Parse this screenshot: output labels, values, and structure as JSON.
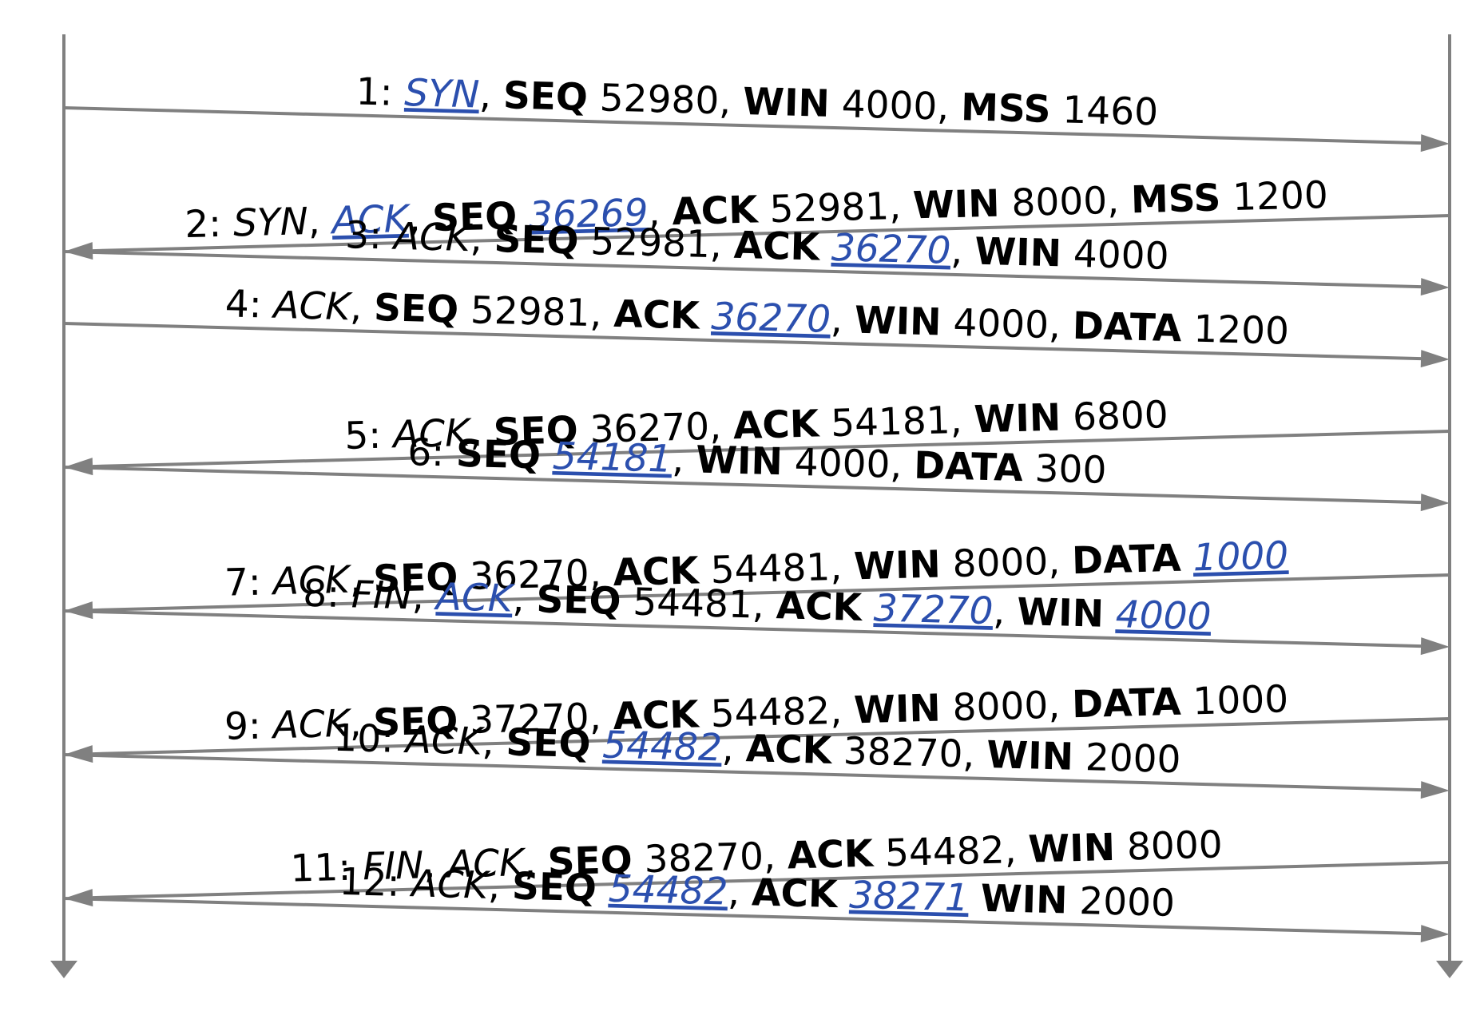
{
  "colors": {
    "line": "#808080",
    "text": "#000000",
    "handwriting": "#2b4fae"
  },
  "messages": [
    {
      "id": 1,
      "dir": "right",
      "segments": [
        {
          "t": "1: ",
          "s": "n"
        },
        {
          "t": "SYN",
          "s": "hw"
        },
        {
          "t": ", ",
          "s": "n"
        },
        {
          "t": "SEQ",
          "s": "b"
        },
        {
          "t": " 52980, ",
          "s": "n"
        },
        {
          "t": "WIN",
          "s": "b"
        },
        {
          "t": " 4000, ",
          "s": "n"
        },
        {
          "t": "MSS",
          "s": "b"
        },
        {
          "t": " 1460",
          "s": "n"
        }
      ]
    },
    {
      "id": 2,
      "dir": "left",
      "segments": [
        {
          "t": "2: ",
          "s": "n"
        },
        {
          "t": "SYN",
          "s": "i"
        },
        {
          "t": ", ",
          "s": "n"
        },
        {
          "t": "ACK",
          "s": "hw"
        },
        {
          "t": ", ",
          "s": "n"
        },
        {
          "t": "SEQ",
          "s": "b"
        },
        {
          "t": " ",
          "s": "n"
        },
        {
          "t": "36269",
          "s": "hw"
        },
        {
          "t": ", ",
          "s": "n"
        },
        {
          "t": "ACK",
          "s": "b"
        },
        {
          "t": " 52981, ",
          "s": "n"
        },
        {
          "t": "WIN",
          "s": "b"
        },
        {
          "t": " 8000, ",
          "s": "n"
        },
        {
          "t": "MSS",
          "s": "b"
        },
        {
          "t": " 1200",
          "s": "n"
        }
      ]
    },
    {
      "id": 3,
      "dir": "right",
      "segments": [
        {
          "t": "3: ",
          "s": "n"
        },
        {
          "t": "ACK",
          "s": "i"
        },
        {
          "t": ", ",
          "s": "n"
        },
        {
          "t": "SEQ",
          "s": "b"
        },
        {
          "t": " 52981, ",
          "s": "n"
        },
        {
          "t": "ACK",
          "s": "b"
        },
        {
          "t": " ",
          "s": "n"
        },
        {
          "t": "36270",
          "s": "hw"
        },
        {
          "t": ", ",
          "s": "n"
        },
        {
          "t": "WIN",
          "s": "b"
        },
        {
          "t": " 4000",
          "s": "n"
        }
      ]
    },
    {
      "id": 4,
      "dir": "right",
      "segments": [
        {
          "t": "4: ",
          "s": "n"
        },
        {
          "t": "ACK",
          "s": "i"
        },
        {
          "t": ", ",
          "s": "n"
        },
        {
          "t": "SEQ",
          "s": "b"
        },
        {
          "t": " 52981, ",
          "s": "n"
        },
        {
          "t": "ACK",
          "s": "b"
        },
        {
          "t": " ",
          "s": "n"
        },
        {
          "t": "36270",
          "s": "hw"
        },
        {
          "t": ", ",
          "s": "n"
        },
        {
          "t": "WIN",
          "s": "b"
        },
        {
          "t": " 4000, ",
          "s": "n"
        },
        {
          "t": "DATA",
          "s": "b"
        },
        {
          "t": " 1200",
          "s": "n"
        }
      ]
    },
    {
      "id": 5,
      "dir": "left",
      "segments": [
        {
          "t": "5: ",
          "s": "n"
        },
        {
          "t": "ACK",
          "s": "i"
        },
        {
          "t": ", ",
          "s": "n"
        },
        {
          "t": "SEQ",
          "s": "b"
        },
        {
          "t": " 36270, ",
          "s": "n"
        },
        {
          "t": "ACK",
          "s": "b"
        },
        {
          "t": " 54181, ",
          "s": "n"
        },
        {
          "t": "WIN",
          "s": "b"
        },
        {
          "t": " 6800",
          "s": "n"
        }
      ]
    },
    {
      "id": 6,
      "dir": "right",
      "segments": [
        {
          "t": "6: ",
          "s": "n"
        },
        {
          "t": "SEQ",
          "s": "b"
        },
        {
          "t": " ",
          "s": "n"
        },
        {
          "t": "54181",
          "s": "hw"
        },
        {
          "t": ", ",
          "s": "n"
        },
        {
          "t": "WIN",
          "s": "b"
        },
        {
          "t": " 4000, ",
          "s": "n"
        },
        {
          "t": "DATA",
          "s": "b"
        },
        {
          "t": " 300",
          "s": "n"
        }
      ]
    },
    {
      "id": 7,
      "dir": "left",
      "segments": [
        {
          "t": "7: ",
          "s": "n"
        },
        {
          "t": "ACK",
          "s": "i"
        },
        {
          "t": ", ",
          "s": "n"
        },
        {
          "t": "SEQ",
          "s": "b"
        },
        {
          "t": " 36270, ",
          "s": "n"
        },
        {
          "t": "ACK",
          "s": "b"
        },
        {
          "t": " 54481, ",
          "s": "n"
        },
        {
          "t": "WIN",
          "s": "b"
        },
        {
          "t": " 8000, ",
          "s": "n"
        },
        {
          "t": "DATA",
          "s": "b"
        },
        {
          "t": " ",
          "s": "n"
        },
        {
          "t": "1000",
          "s": "hw"
        }
      ]
    },
    {
      "id": 8,
      "dir": "right",
      "segments": [
        {
          "t": "8: ",
          "s": "n"
        },
        {
          "t": "FIN",
          "s": "i"
        },
        {
          "t": ", ",
          "s": "n"
        },
        {
          "t": "ACK",
          "s": "hw"
        },
        {
          "t": ", ",
          "s": "n"
        },
        {
          "t": "SEQ",
          "s": "b"
        },
        {
          "t": " 54481, ",
          "s": "n"
        },
        {
          "t": "ACK",
          "s": "b"
        },
        {
          "t": " ",
          "s": "n"
        },
        {
          "t": "37270",
          "s": "hw"
        },
        {
          "t": ", ",
          "s": "n"
        },
        {
          "t": "WIN",
          "s": "b"
        },
        {
          "t": " ",
          "s": "n"
        },
        {
          "t": "4000",
          "s": "hw"
        }
      ]
    },
    {
      "id": 9,
      "dir": "left",
      "segments": [
        {
          "t": "9: ",
          "s": "n"
        },
        {
          "t": "ACK",
          "s": "i"
        },
        {
          "t": ", ",
          "s": "n"
        },
        {
          "t": "SEQ",
          "s": "b"
        },
        {
          "t": " 37270, ",
          "s": "n"
        },
        {
          "t": "ACK",
          "s": "b"
        },
        {
          "t": " 54482, ",
          "s": "n"
        },
        {
          "t": "WIN",
          "s": "b"
        },
        {
          "t": " 8000, ",
          "s": "n"
        },
        {
          "t": "DATA",
          "s": "b"
        },
        {
          "t": " 1000",
          "s": "n"
        }
      ]
    },
    {
      "id": 10,
      "dir": "right",
      "segments": [
        {
          "t": "10: ",
          "s": "n"
        },
        {
          "t": "ACK",
          "s": "i"
        },
        {
          "t": ", ",
          "s": "n"
        },
        {
          "t": "SEQ",
          "s": "b"
        },
        {
          "t": " ",
          "s": "n"
        },
        {
          "t": "54482",
          "s": "hw"
        },
        {
          "t": ", ",
          "s": "n"
        },
        {
          "t": "ACK",
          "s": "b"
        },
        {
          "t": " 38270, ",
          "s": "n"
        },
        {
          "t": "WIN",
          "s": "b"
        },
        {
          "t": " 2000",
          "s": "n"
        }
      ]
    },
    {
      "id": 11,
      "dir": "left",
      "segments": [
        {
          "t": "11: ",
          "s": "n"
        },
        {
          "t": "FIN",
          "s": "i"
        },
        {
          "t": ", ",
          "s": "n"
        },
        {
          "t": "ACK",
          "s": "i"
        },
        {
          "t": ", ",
          "s": "n"
        },
        {
          "t": "SEQ",
          "s": "b"
        },
        {
          "t": " 38270, ",
          "s": "n"
        },
        {
          "t": "ACK",
          "s": "b"
        },
        {
          "t": " 54482, ",
          "s": "n"
        },
        {
          "t": "WIN",
          "s": "b"
        },
        {
          "t": " 8000",
          "s": "n"
        }
      ]
    },
    {
      "id": 12,
      "dir": "right",
      "segments": [
        {
          "t": "12: ",
          "s": "n"
        },
        {
          "t": "ACK",
          "s": "i"
        },
        {
          "t": ", ",
          "s": "n"
        },
        {
          "t": "SEQ",
          "s": "b"
        },
        {
          "t": " ",
          "s": "n"
        },
        {
          "t": "54482",
          "s": "hw"
        },
        {
          "t": ", ",
          "s": "n"
        },
        {
          "t": "ACK",
          "s": "b"
        },
        {
          "t": " ",
          "s": "n"
        },
        {
          "t": "38271",
          "s": "hw"
        },
        {
          "t": " ",
          "s": "n"
        },
        {
          "t": "WIN",
          "s": "b"
        },
        {
          "t": " 2000",
          "s": "n"
        }
      ]
    }
  ]
}
